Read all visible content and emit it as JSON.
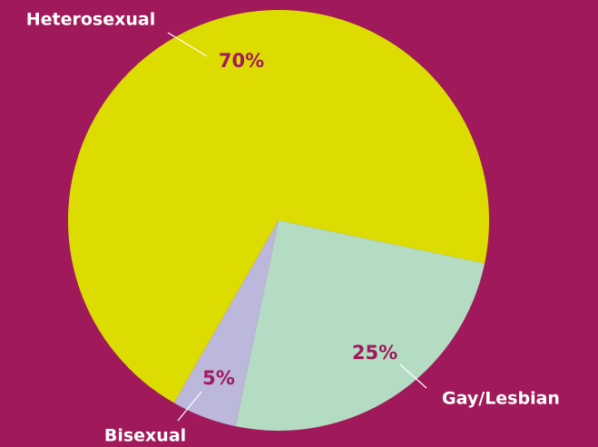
{
  "chart_data": {
    "type": "pie",
    "categories": [
      "Heterosexual",
      "Gay/Lesbian",
      "Bisexual"
    ],
    "values": [
      70,
      25,
      5
    ],
    "value_labels": [
      "70%",
      "25%",
      "5%"
    ],
    "colors": [
      "#dcdc00",
      "#b3dcc2",
      "#bbb8dc"
    ]
  }
}
